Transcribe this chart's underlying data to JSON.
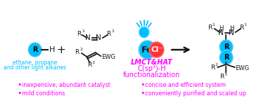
{
  "bg_color": "#ffffff",
  "cyan_color": "#00BFFF",
  "magenta_color": "#FF00FF",
  "red_color": "#FF3333",
  "black_color": "#1a1a1a",
  "bullet_left": [
    "inexpensive, abundant catalyst",
    "mild conditions"
  ],
  "bullet_right": [
    "concise and efficient system",
    "conveniently purified and scaled up"
  ],
  "lmct_line1": "LMCT&HAT",
  "lmct_line2": "C(sp³)-H",
  "lmct_line3": "functionalization",
  "alkane_label_line1": "ethane, propane",
  "alkane_label_line2": "and other light alkanes",
  "figsize": [
    3.78,
    1.47
  ],
  "dpi": 100,
  "xlim": [
    0,
    378
  ],
  "ylim": [
    0,
    147
  ]
}
